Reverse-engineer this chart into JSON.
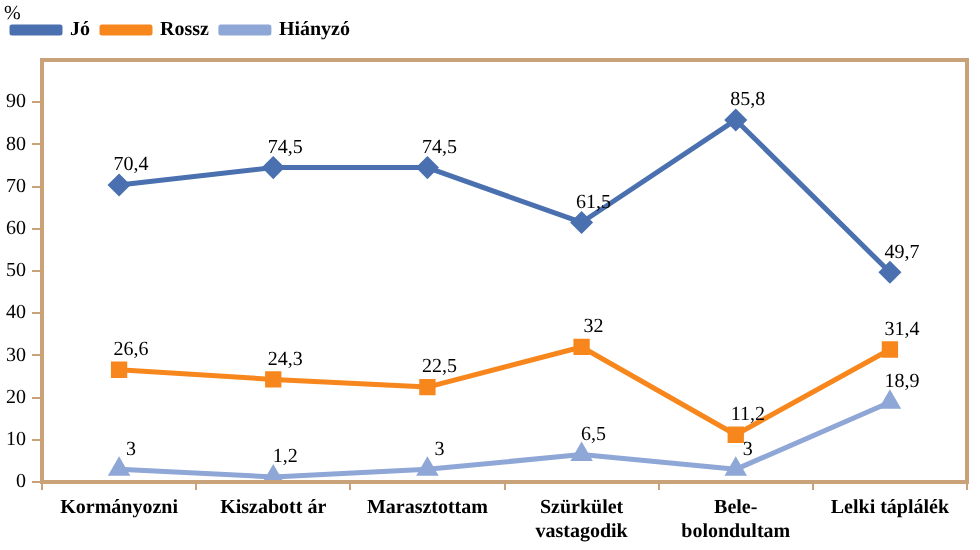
{
  "chart_data": {
    "type": "line",
    "ylabel": "%",
    "categories": [
      "Kormányozni",
      "Kiszabott ár",
      "Marasztottam",
      "Szürkület\nvastagodik",
      "Bele-\nbolondultam",
      "Lelki táplálék"
    ],
    "series": [
      {
        "name": "Jó",
        "color": "#4a70b0",
        "marker": "diamond",
        "values": [
          70.4,
          74.5,
          74.5,
          61.5,
          85.8,
          49.7
        ],
        "value_labels": [
          "70,4",
          "74,5",
          "74,5",
          "61,5",
          "85,8",
          "49,7"
        ]
      },
      {
        "name": "Rossz",
        "color": "#f7861c",
        "marker": "square",
        "values": [
          26.6,
          24.3,
          22.5,
          32,
          11.2,
          31.4
        ],
        "value_labels": [
          "26,6",
          "24,3",
          "22,5",
          "32",
          "11,2",
          "31,4"
        ]
      },
      {
        "name": "Hiányzó",
        "color": "#8ea7d6",
        "marker": "triangle",
        "values": [
          3,
          1.2,
          3,
          6.5,
          3,
          18.9
        ],
        "value_labels": [
          "3",
          "1,2",
          "3",
          "6,5",
          "3",
          "18,9"
        ]
      }
    ],
    "ylim": [
      0,
      100
    ],
    "yticks": [
      0,
      10,
      20,
      30,
      40,
      50,
      60,
      70,
      80,
      90
    ],
    "grid": false,
    "legend": "top left",
    "line_style": "solid"
  }
}
